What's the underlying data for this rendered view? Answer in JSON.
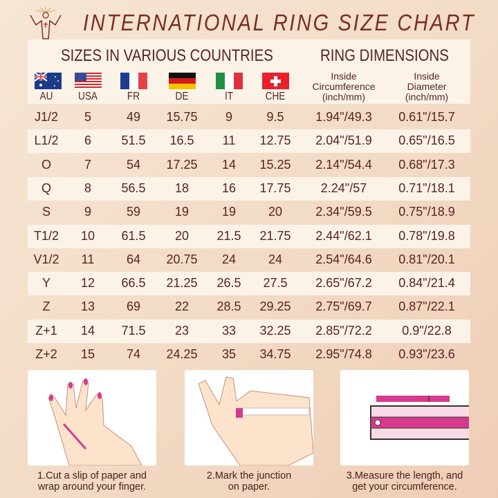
{
  "title": "INTERNATIONAL RING SIZE CHART",
  "sections": {
    "countries": "SIZES IN VARIOUS COUNTRIES",
    "dimensions": "RING DIMENSIONS"
  },
  "columns": [
    "AU",
    "USA",
    "FR",
    "DE",
    "IT",
    "CHE"
  ],
  "dim_columns": [
    {
      "l1": "Inside",
      "l2": "Circumference",
      "l3": "(inch/mm)"
    },
    {
      "l1": "Inside",
      "l2": "Diameter",
      "l3": "(inch/mm)"
    }
  ],
  "rows": [
    [
      "J1/2",
      "5",
      "49",
      "15.75",
      "9",
      "9.5",
      "1.94\"/49.3",
      "0.61\"/15.7"
    ],
    [
      "L1/2",
      "6",
      "51.5",
      "16.5",
      "11",
      "12.75",
      "2.04\"/51.9",
      "0.65\"/16.5"
    ],
    [
      "O",
      "7",
      "54",
      "17.25",
      "14",
      "15.25",
      "2.14\"/54.4",
      "0.68\"/17.3"
    ],
    [
      "Q",
      "8",
      "56.5",
      "18",
      "16",
      "17.75",
      "2.24\"/57",
      "0.71\"/18.1"
    ],
    [
      "S",
      "9",
      "59",
      "19",
      "19",
      "20",
      "2.34\"/59.5",
      "0.75\"/18.9"
    ],
    [
      "T1/2",
      "10",
      "61.5",
      "20",
      "21.5",
      "21.75",
      "2.44\"/62.1",
      "0.78\"/19.8"
    ],
    [
      "V1/2",
      "11",
      "64",
      "20.75",
      "24",
      "24",
      "2.54\"/64.6",
      "0.81\"/20.1"
    ],
    [
      "Y",
      "12",
      "66.5",
      "21.25",
      "26.5",
      "27.5",
      "2.65\"/67.2",
      "0.84\"/21.4"
    ],
    [
      "Z",
      "13",
      "69",
      "22",
      "28.5",
      "29.25",
      "2.75\"/69.7",
      "0.87\"/22.1"
    ],
    [
      "Z+1",
      "14",
      "71.5",
      "23",
      "33",
      "32.25",
      "2.85\"/72.2",
      "0.9\"/22.8"
    ],
    [
      "Z+2",
      "15",
      "74",
      "24.25",
      "35",
      "34.75",
      "2.95\"/74.8",
      "0.93\"/23.6"
    ]
  ],
  "steps": [
    {
      "l1": "1.Cut a slip of paper and",
      "l2": "wrap around your finger."
    },
    {
      "l1": "2.Mark the junction",
      "l2": "on paper."
    },
    {
      "l1": "3.Measure the length, and",
      "l2": "get your circumference."
    }
  ],
  "colors": {
    "text": "#5a2220",
    "accent": "#d63a8c",
    "row_band": "#fbf3e8"
  }
}
